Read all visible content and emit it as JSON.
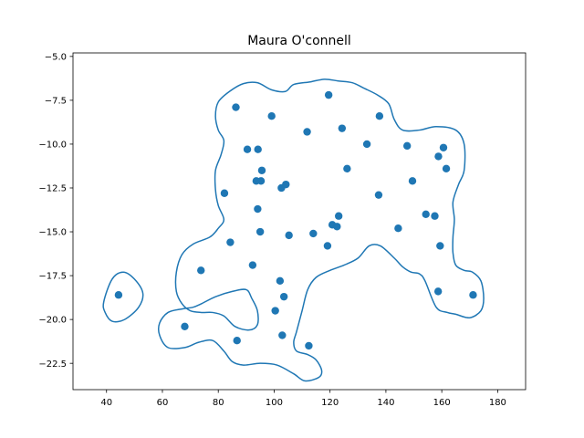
{
  "chart_data": {
    "type": "scatter",
    "title": "Maura O'connell",
    "xlabel": "",
    "ylabel": "",
    "xlim": [
      28,
      190
    ],
    "ylim": [
      -24.0,
      -4.8
    ],
    "xticks": [
      40,
      60,
      80,
      100,
      120,
      140,
      160,
      180
    ],
    "yticks": [
      -5.0,
      -7.5,
      -10.0,
      -12.5,
      -15.0,
      -17.5,
      -20.0,
      -22.5
    ],
    "xtick_labels": [
      "40",
      "60",
      "80",
      "100",
      "120",
      "140",
      "160",
      "180"
    ],
    "ytick_labels": [
      "−5.0",
      "−7.5",
      "−10.0",
      "−12.5",
      "−15.0",
      "−17.5",
      "−20.0",
      "−22.5"
    ],
    "grid": false,
    "colors": {
      "points": "#1f77b4",
      "contour": "#1f77b4"
    },
    "points": [
      [
        44.3,
        -18.6
      ],
      [
        68.0,
        -20.4
      ],
      [
        73.8,
        -17.2
      ],
      [
        82.2,
        -12.8
      ],
      [
        84.3,
        -15.6
      ],
      [
        86.3,
        -7.9
      ],
      [
        86.7,
        -21.2
      ],
      [
        90.4,
        -10.3
      ],
      [
        92.3,
        -16.9
      ],
      [
        93.6,
        -12.1
      ],
      [
        94.1,
        -13.7
      ],
      [
        94.2,
        -10.3
      ],
      [
        95.0,
        -15.0
      ],
      [
        95.3,
        -12.1
      ],
      [
        95.6,
        -11.5
      ],
      [
        99.1,
        -8.4
      ],
      [
        100.4,
        -19.5
      ],
      [
        102.1,
        -17.8
      ],
      [
        102.6,
        -12.5
      ],
      [
        102.9,
        -20.9
      ],
      [
        103.5,
        -18.7
      ],
      [
        104.2,
        -12.3
      ],
      [
        105.3,
        -15.2
      ],
      [
        111.8,
        -9.3
      ],
      [
        112.4,
        -21.5
      ],
      [
        114.0,
        -15.1
      ],
      [
        119.1,
        -15.8
      ],
      [
        119.5,
        -7.2
      ],
      [
        120.8,
        -14.6
      ],
      [
        122.5,
        -14.7
      ],
      [
        123.1,
        -14.1
      ],
      [
        124.3,
        -9.1
      ],
      [
        126.1,
        -11.4
      ],
      [
        133.2,
        -10.0
      ],
      [
        137.4,
        -12.9
      ],
      [
        137.7,
        -8.4
      ],
      [
        144.4,
        -14.8
      ],
      [
        147.6,
        -10.1
      ],
      [
        149.5,
        -12.1
      ],
      [
        154.3,
        -14.0
      ],
      [
        157.5,
        -14.1
      ],
      [
        158.7,
        -18.4
      ],
      [
        158.8,
        -10.7
      ],
      [
        159.4,
        -15.8
      ],
      [
        160.6,
        -10.2
      ],
      [
        161.6,
        -11.4
      ],
      [
        171.2,
        -18.6
      ]
    ],
    "contours": [
      {
        "name": "",
        "points": [
          [
            39.0,
            -19.0
          ],
          [
            42.0,
            -17.7
          ],
          [
            46.0,
            -17.3
          ],
          [
            50.0,
            -17.7
          ],
          [
            53.0,
            -18.5
          ],
          [
            51.5,
            -19.3
          ],
          [
            46.5,
            -20.0
          ],
          [
            42.0,
            -20.1
          ],
          [
            39.5,
            -19.6
          ],
          [
            39.0,
            -19.0
          ]
        ]
      },
      {
        "name": "",
        "points": [
          [
            84,
            -7.0
          ],
          [
            89,
            -6.55
          ],
          [
            94,
            -6.5
          ],
          [
            99,
            -6.9
          ],
          [
            104,
            -7.0
          ],
          [
            107,
            -6.6
          ],
          [
            113,
            -6.45
          ],
          [
            118,
            -6.3
          ],
          [
            123,
            -6.4
          ],
          [
            128,
            -6.5
          ],
          [
            132,
            -6.8
          ],
          [
            137,
            -7.2
          ],
          [
            141,
            -7.7
          ],
          [
            143,
            -8.6
          ],
          [
            146,
            -9.2
          ],
          [
            152,
            -9.2
          ],
          [
            158,
            -9.0
          ],
          [
            165,
            -9.2
          ],
          [
            168,
            -10.0
          ],
          [
            168,
            -11.5
          ],
          [
            166,
            -12.3
          ],
          [
            164,
            -13.3
          ],
          [
            164.5,
            -14.3
          ],
          [
            164,
            -15.3
          ],
          [
            164,
            -16.2
          ],
          [
            165,
            -16.9
          ],
          [
            168,
            -17.2
          ],
          [
            171,
            -17.3
          ],
          [
            174,
            -17.8
          ],
          [
            175,
            -18.8
          ],
          [
            174,
            -19.5
          ],
          [
            170,
            -19.9
          ],
          [
            165,
            -19.7
          ],
          [
            162,
            -19.6
          ],
          [
            158,
            -19.3
          ],
          [
            154,
            -17.8
          ],
          [
            152,
            -17.4
          ],
          [
            149,
            -17.3
          ],
          [
            146,
            -17.0
          ],
          [
            143,
            -16.5
          ],
          [
            138,
            -15.8
          ],
          [
            134,
            -15.8
          ],
          [
            130,
            -16.5
          ],
          [
            125,
            -16.9
          ],
          [
            120,
            -17.2
          ],
          [
            115,
            -17.6
          ],
          [
            112,
            -18.3
          ],
          [
            110,
            -19.5
          ],
          [
            108,
            -20.7
          ],
          [
            107,
            -21.3
          ],
          [
            108,
            -21.8
          ],
          [
            112,
            -22.0
          ],
          [
            115,
            -22.3
          ],
          [
            117,
            -22.9
          ],
          [
            116,
            -23.3
          ],
          [
            111,
            -23.5
          ],
          [
            107,
            -23.1
          ],
          [
            101,
            -22.6
          ],
          [
            95,
            -22.5
          ],
          [
            89,
            -22.6
          ],
          [
            85,
            -22.4
          ],
          [
            82,
            -21.8
          ],
          [
            78,
            -21.2
          ],
          [
            73,
            -21.3
          ],
          [
            68,
            -21.6
          ],
          [
            62,
            -21.6
          ],
          [
            59,
            -20.9
          ],
          [
            59,
            -20.2
          ],
          [
            62,
            -19.6
          ],
          [
            67,
            -19.4
          ],
          [
            71,
            -19.3
          ],
          [
            74,
            -19.1
          ],
          [
            79,
            -18.7
          ],
          [
            85,
            -18.4
          ],
          [
            90,
            -18.3
          ],
          [
            92,
            -18.8
          ],
          [
            94,
            -19.5
          ],
          [
            94,
            -20.3
          ],
          [
            91,
            -20.6
          ],
          [
            86,
            -20.4
          ],
          [
            82,
            -19.8
          ],
          [
            78,
            -19.6
          ],
          [
            74,
            -19.6
          ],
          [
            70,
            -19.5
          ],
          [
            67,
            -19.1
          ],
          [
            65,
            -18.4
          ],
          [
            65,
            -17.3
          ],
          [
            67,
            -16.3
          ],
          [
            71,
            -15.7
          ],
          [
            77,
            -15.3
          ],
          [
            80,
            -14.8
          ],
          [
            82,
            -14.3
          ],
          [
            80,
            -13.5
          ],
          [
            79,
            -12.6
          ],
          [
            79,
            -11.5
          ],
          [
            81,
            -10.6
          ],
          [
            82,
            -9.8
          ],
          [
            80,
            -9.2
          ],
          [
            79,
            -8.4
          ],
          [
            80,
            -7.6
          ],
          [
            84,
            -7.0
          ]
        ]
      }
    ]
  }
}
